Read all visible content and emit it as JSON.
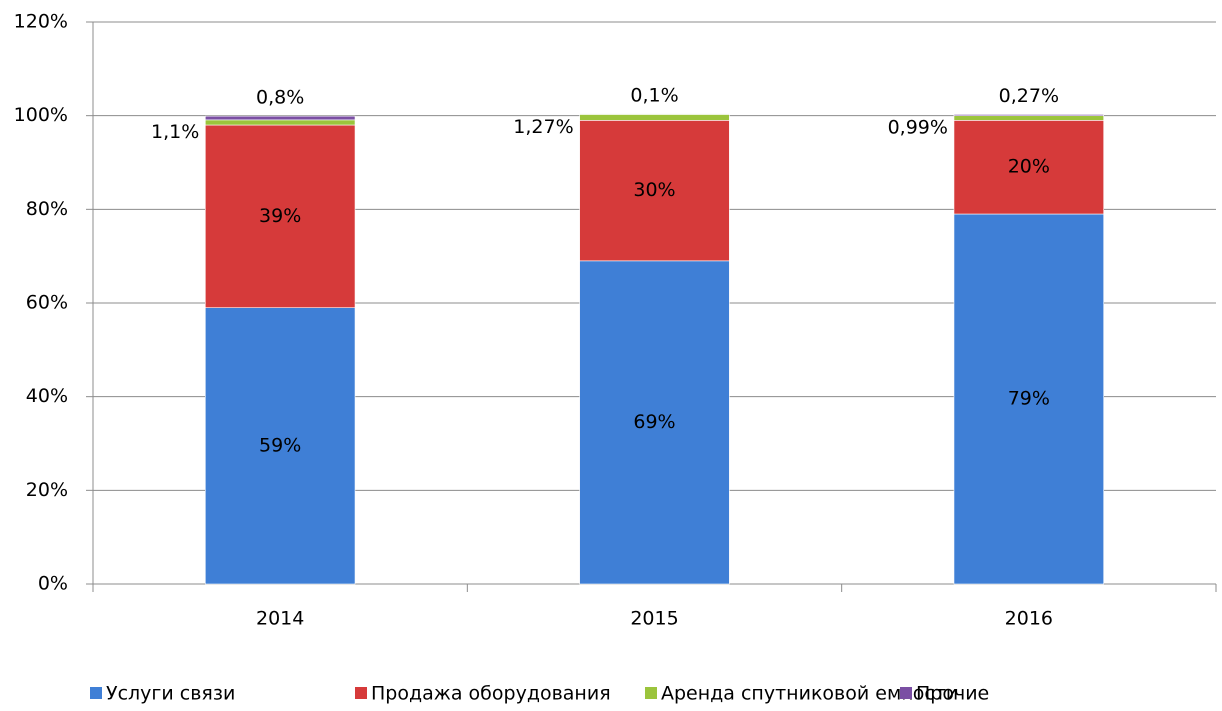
{
  "chart_data": {
    "type": "stacked_bar",
    "categories": [
      "2014",
      "2015",
      "2016"
    ],
    "series": [
      {
        "name": "Услуги связи",
        "color": "#3f7fd6",
        "values": [
          59,
          69,
          79
        ],
        "value_labels": [
          "59%",
          "69%",
          "79%"
        ]
      },
      {
        "name": "Продажа оборудования",
        "color": "#d63a3a",
        "values": [
          39,
          30,
          20
        ],
        "value_labels": [
          "39%",
          "30%",
          "20%"
        ]
      },
      {
        "name": "Аренда спутниковой емкости",
        "color": "#9bc43c",
        "values": [
          1.1,
          1.27,
          0.99
        ],
        "value_labels": [
          "1,1%",
          "1,27%",
          "0,99%"
        ]
      },
      {
        "name": "Прочие",
        "color": "#7a4fa3",
        "values": [
          0.8,
          0.1,
          0.27
        ],
        "value_labels": [
          "0,8%",
          "0,1%",
          "0,27%"
        ]
      }
    ],
    "ylim": [
      0,
      120
    ],
    "yticks": [
      {
        "value": 0,
        "label": "0%"
      },
      {
        "value": 20,
        "label": "20%"
      },
      {
        "value": 40,
        "label": "40%"
      },
      {
        "value": 60,
        "label": "60%"
      },
      {
        "value": 80,
        "label": "80%"
      },
      {
        "value": 100,
        "label": "100%"
      },
      {
        "value": 120,
        "label": "120%"
      }
    ],
    "grid": true,
    "legend": "bottom"
  }
}
